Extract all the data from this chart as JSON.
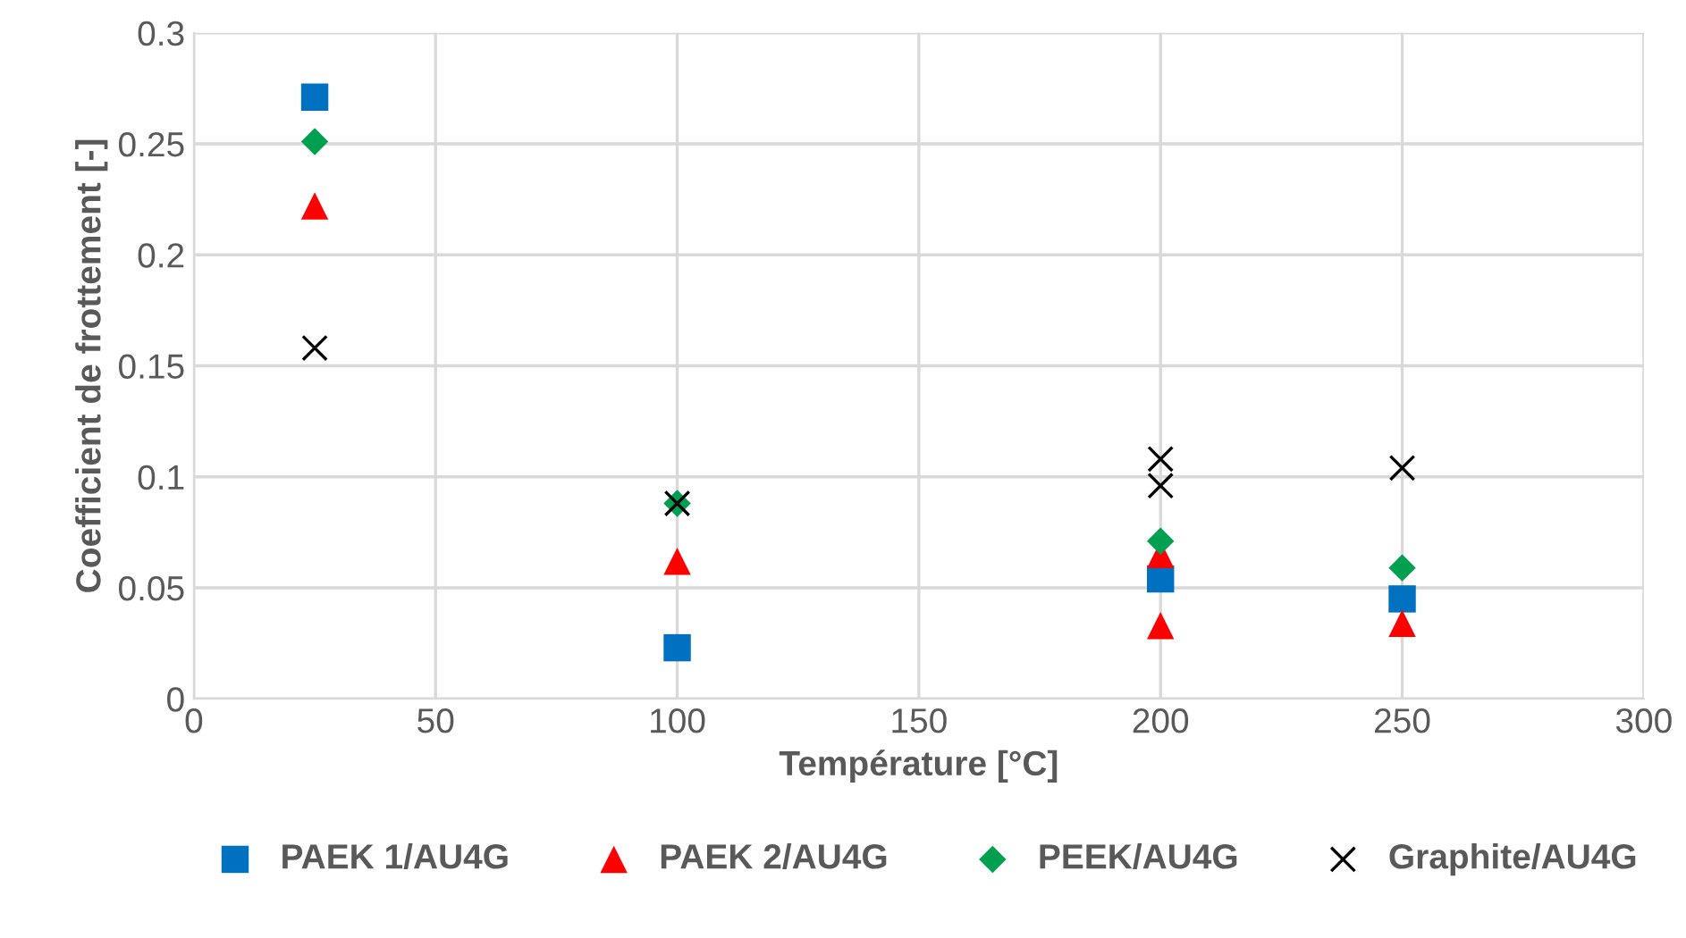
{
  "chart_data": {
    "type": "scatter",
    "xlabel": "Température [°C]",
    "ylabel": "Coefficient de frottement [-]",
    "xlim": [
      0,
      300
    ],
    "xticks": [
      0,
      50,
      100,
      150,
      200,
      250,
      300
    ],
    "ylim": [
      0,
      0.3
    ],
    "yticks": [
      0,
      0.05,
      0.1,
      0.15,
      0.2,
      0.25,
      0.3
    ],
    "grid": true,
    "legend": "bottom",
    "series": [
      {
        "name": "PAEK 1/AU4G",
        "color": "#0070c0",
        "marker": "square",
        "x": [
          25,
          100,
          200,
          250
        ],
        "values": [
          0.271,
          0.023,
          0.054,
          0.045
        ]
      },
      {
        "name": "PAEK 2/AU4G",
        "color": "#ff0000",
        "marker": "triangle",
        "x": [
          25,
          100,
          200,
          200,
          250
        ],
        "values": [
          0.222,
          0.062,
          0.065,
          0.033,
          0.034
        ]
      },
      {
        "name": "PEEK/AU4G",
        "color": "#00a050",
        "marker": "diamond",
        "x": [
          25,
          100,
          200,
          250
        ],
        "values": [
          0.251,
          0.088,
          0.071,
          0.059
        ]
      },
      {
        "name": "Graphite/AU4G",
        "color": "#000000",
        "marker": "cross",
        "x": [
          25,
          100,
          200,
          200,
          250
        ],
        "values": [
          0.158,
          0.088,
          0.108,
          0.096,
          0.104
        ]
      }
    ]
  }
}
